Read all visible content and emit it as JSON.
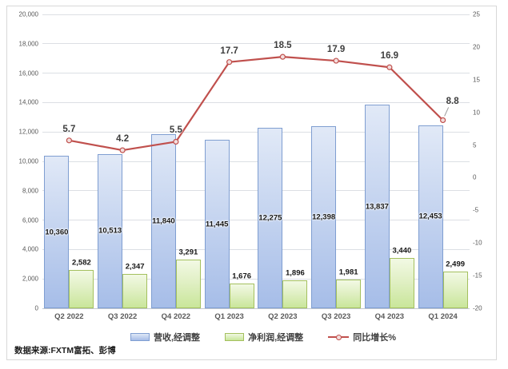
{
  "source_note": "数据来源:FXTM富拓、彭博",
  "legend": {
    "items": [
      {
        "label": "营收,经调整",
        "swatch": "bar-blue"
      },
      {
        "label": "净利润,经调整",
        "swatch": "bar-green"
      },
      {
        "label": "同比增长%",
        "swatch": "line-red"
      }
    ]
  },
  "chart_data": {
    "type": "combo",
    "categories": [
      "Q2 2022",
      "Q3 2022",
      "Q4 2022",
      "Q1 2023",
      "Q2 2023",
      "Q3 2023",
      "Q4 2023",
      "Q1 2024"
    ],
    "series": [
      {
        "name": "营收,经调整",
        "type": "bar",
        "axis": "left",
        "label_position": "center",
        "values": [
          10360,
          10513,
          11840,
          11445,
          12275,
          12398,
          13837,
          12453
        ]
      },
      {
        "name": "净利润,经调整",
        "type": "bar",
        "axis": "left",
        "label_position": "outside-end",
        "values": [
          2582,
          2347,
          3291,
          1676,
          1896,
          1981,
          3440,
          2499
        ]
      },
      {
        "name": "同比增长%",
        "type": "line",
        "axis": "right",
        "label_position": "above",
        "values": [
          5.7,
          4.2,
          5.5,
          17.7,
          18.5,
          17.9,
          16.9,
          8.8
        ],
        "last_label_offset": {
          "dx": 12,
          "dy": -23,
          "leader": true
        }
      }
    ],
    "left_axis": {
      "min": 0,
      "max": 20000,
      "step": 2000
    },
    "right_axis": {
      "min": -20,
      "max": 25,
      "step": 5
    },
    "grid": "horizontal",
    "legend_position": "bottom",
    "colors": {
      "revenue_fill_top": "#e1e9f7",
      "revenue_fill_bottom": "#a6bde8",
      "revenue_border": "#7f9ed1",
      "profit_fill_top": "#f2f9e4",
      "profit_fill_bottom": "#c9e69a",
      "profit_border": "#a4c05e",
      "line": "#c0504d",
      "marker_fill": "#f3dedd",
      "leader": "#9a9a9a",
      "grid": "#dcdfe4",
      "axis_text": "#595959",
      "bar_label_text": "#161616",
      "line_label_text": "#3d3d3d"
    }
  }
}
